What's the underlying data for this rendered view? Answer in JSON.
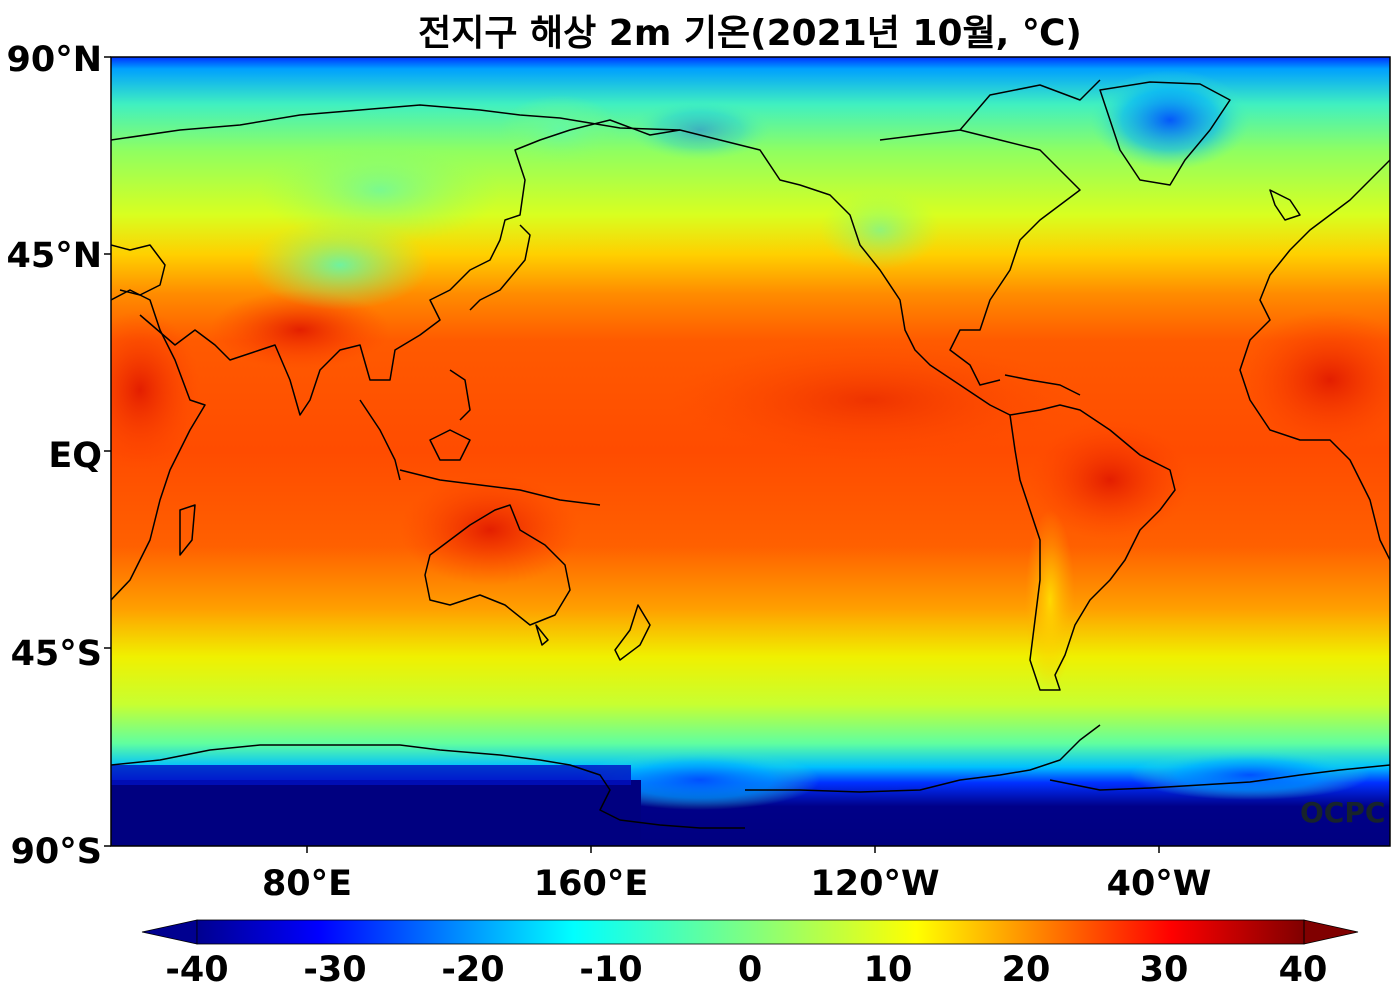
{
  "title": "전지구 해상 2m 기온(2021년 10월, ℃)",
  "lat_labels": [
    "90°N",
    "45°N",
    "EQ",
    "45°S",
    "90°S"
  ],
  "lon_labels": [
    "80°E",
    "160°E",
    "120°W",
    "40°W"
  ],
  "colorbar": {
    "ticks": [
      "-40",
      "-30",
      "-20",
      "-10",
      "0",
      "10",
      "20",
      "30",
      "40"
    ],
    "colormap": "jet",
    "min": -40,
    "max": 40,
    "extend": "both",
    "colors": [
      "#800000",
      "#ff0000",
      "#ff8000",
      "#ffff00",
      "#80ff80",
      "#00ffff",
      "#0080ff",
      "#0000ff",
      "#000080"
    ]
  },
  "watermark": "OCPC",
  "map": {
    "projection": "equirectangular",
    "central_longitude": "180°",
    "coastline_color": "#000000"
  }
}
